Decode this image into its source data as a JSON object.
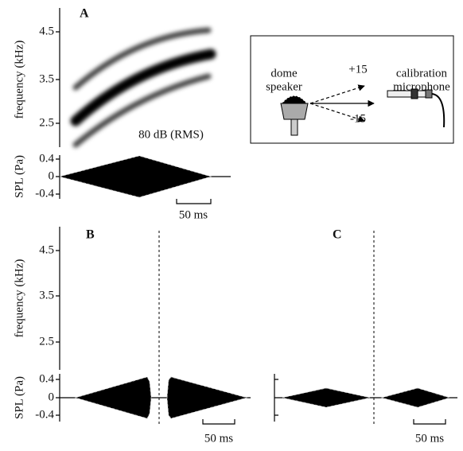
{
  "panels": [
    {
      "label": "A",
      "y_axis_label": "frequency (kHz)",
      "yticks": [
        "4.5",
        "3.5",
        "2.5"
      ],
      "annotation": "80 dB (RMS)",
      "spl_label": "SPL (Pa)",
      "spl_ticks": [
        "0.4",
        "0",
        "-0.4"
      ],
      "scale_bar": "50 ms"
    },
    {
      "label": "B",
      "y_axis_label": "frequency (kHz)",
      "yticks": [
        "4.5",
        "3.5",
        "2.5"
      ],
      "spl_label": "SPL (Pa)",
      "spl_ticks": [
        "0.4",
        "0",
        "-0.4"
      ],
      "scale_bar": "50 ms"
    },
    {
      "label": "C",
      "scale_bar": "50 ms"
    }
  ],
  "inset": {
    "speaker": [
      "dome",
      "speaker"
    ],
    "angles": [
      "+15",
      "-15"
    ],
    "microphone": [
      "calibration",
      "microphone"
    ]
  }
}
